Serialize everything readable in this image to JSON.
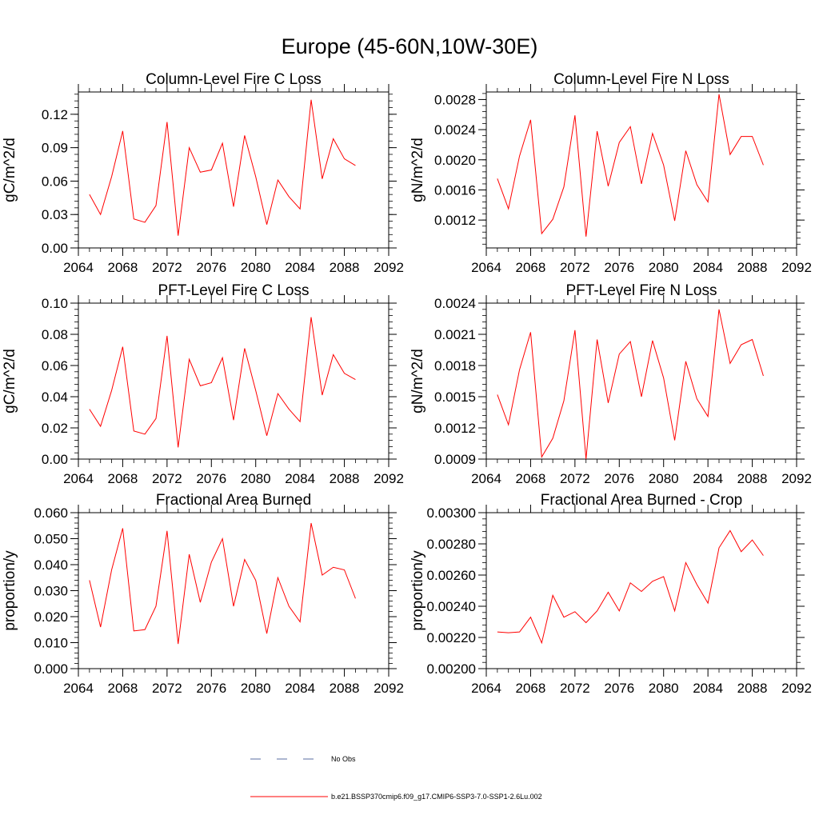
{
  "figure": {
    "title": "Europe (45-60N,10W-30E)",
    "legend": [
      {
        "label": "No Obs",
        "style": "dashed",
        "color": "#5a6ea0"
      },
      {
        "label": "b.e21.BSSP370cmip6.f09_g17.CMIP6-SSP3-7.0-SSP1-2.6Lu.002",
        "style": "solid",
        "color": "#ff0000"
      }
    ]
  },
  "chart_data": [
    {
      "type": "line",
      "title": "Column-Level Fire C Loss",
      "ylabel": "gC/m^2/d",
      "xlim": [
        2064,
        2092
      ],
      "ylim": [
        0,
        0.14
      ],
      "x_ticks": [
        2064,
        2068,
        2072,
        2076,
        2080,
        2084,
        2088,
        2092
      ],
      "y_ticks": [
        0.0,
        0.03,
        0.06,
        0.09,
        0.12
      ],
      "y_tick_labels": [
        "0.00",
        "0.03",
        "0.06",
        "0.09",
        "0.12"
      ],
      "x": [
        2065,
        2066,
        2067,
        2068,
        2069,
        2070,
        2071,
        2072,
        2073,
        2074,
        2075,
        2076,
        2077,
        2078,
        2079,
        2080,
        2081,
        2082,
        2083,
        2084,
        2085,
        2086,
        2087,
        2088,
        2089
      ],
      "series": [
        {
          "name": "b.e21.BSSP370cmip6.f09_g17.CMIP6-SSP3-7.0-SSP1-2.6Lu.002",
          "color": "#ff0000",
          "values": [
            0.048,
            0.03,
            0.064,
            0.105,
            0.026,
            0.023,
            0.038,
            0.113,
            0.011,
            0.09,
            0.068,
            0.07,
            0.094,
            0.037,
            0.101,
            0.064,
            0.021,
            0.061,
            0.046,
            0.035,
            0.133,
            0.062,
            0.098,
            0.08,
            0.074
          ]
        }
      ]
    },
    {
      "type": "line",
      "title": "Column-Level Fire N Loss",
      "ylabel": "gN/m^2/d",
      "xlim": [
        2064,
        2092
      ],
      "ylim": [
        0.00083,
        0.0029
      ],
      "x_ticks": [
        2064,
        2068,
        2072,
        2076,
        2080,
        2084,
        2088,
        2092
      ],
      "y_ticks": [
        0.0012,
        0.0016,
        0.002,
        0.0024,
        0.0028
      ],
      "y_tick_labels": [
        "0.0012",
        "0.0016",
        "0.0020",
        "0.0024",
        "0.0028"
      ],
      "x": [
        2065,
        2066,
        2067,
        2068,
        2069,
        2070,
        2071,
        2072,
        2073,
        2074,
        2075,
        2076,
        2077,
        2078,
        2079,
        2080,
        2081,
        2082,
        2083,
        2084,
        2085,
        2086,
        2087,
        2088,
        2089
      ],
      "series": [
        {
          "name": "b.e21.BSSP370cmip6.f09_g17.CMIP6-SSP3-7.0-SSP1-2.6Lu.002",
          "color": "#ff0000",
          "values": [
            0.00175,
            0.00135,
            0.00205,
            0.00253,
            0.00102,
            0.00121,
            0.00164,
            0.00259,
            0.00098,
            0.00238,
            0.00165,
            0.00223,
            0.00244,
            0.00168,
            0.00235,
            0.00193,
            0.00119,
            0.00212,
            0.00167,
            0.00144,
            0.00287,
            0.00207,
            0.00231,
            0.00231,
            0.00193
          ]
        }
      ]
    },
    {
      "type": "line",
      "title": "PFT-Level Fire C Loss",
      "ylabel": "gC/m^2/d",
      "xlim": [
        2064,
        2092
      ],
      "ylim": [
        0,
        0.1
      ],
      "x_ticks": [
        2064,
        2068,
        2072,
        2076,
        2080,
        2084,
        2088,
        2092
      ],
      "y_ticks": [
        0.0,
        0.02,
        0.04,
        0.06,
        0.08,
        0.1
      ],
      "y_tick_labels": [
        "0.00",
        "0.02",
        "0.04",
        "0.06",
        "0.08",
        "0.10"
      ],
      "x": [
        2065,
        2066,
        2067,
        2068,
        2069,
        2070,
        2071,
        2072,
        2073,
        2074,
        2075,
        2076,
        2077,
        2078,
        2079,
        2080,
        2081,
        2082,
        2083,
        2084,
        2085,
        2086,
        2087,
        2088,
        2089
      ],
      "series": [
        {
          "name": "b.e21.BSSP370cmip6.f09_g17.CMIP6-SSP3-7.0-SSP1-2.6Lu.002",
          "color": "#ff0000",
          "values": [
            0.032,
            0.021,
            0.044,
            0.072,
            0.018,
            0.016,
            0.026,
            0.079,
            0.0075,
            0.064,
            0.047,
            0.049,
            0.065,
            0.025,
            0.071,
            0.044,
            0.015,
            0.042,
            0.032,
            0.024,
            0.091,
            0.041,
            0.067,
            0.055,
            0.051
          ]
        }
      ]
    },
    {
      "type": "line",
      "title": "PFT-Level Fire N Loss",
      "ylabel": "gN/m^2/d",
      "xlim": [
        2064,
        2092
      ],
      "ylim": [
        0.0009,
        0.0024
      ],
      "x_ticks": [
        2064,
        2068,
        2072,
        2076,
        2080,
        2084,
        2088,
        2092
      ],
      "y_ticks": [
        0.0009,
        0.0012,
        0.0015,
        0.0018,
        0.0021,
        0.0024
      ],
      "y_tick_labels": [
        "0.0009",
        "0.0012",
        "0.0015",
        "0.0018",
        "0.0021",
        "0.0024"
      ],
      "x": [
        2065,
        2066,
        2067,
        2068,
        2069,
        2070,
        2071,
        2072,
        2073,
        2074,
        2075,
        2076,
        2077,
        2078,
        2079,
        2080,
        2081,
        2082,
        2083,
        2084,
        2085,
        2086,
        2087,
        2088,
        2089
      ],
      "series": [
        {
          "name": "b.e21.BSSP370cmip6.f09_g17.CMIP6-SSP3-7.0-SSP1-2.6Lu.002",
          "color": "#ff0000",
          "values": [
            0.00152,
            0.00123,
            0.00176,
            0.00212,
            0.00092,
            0.0011,
            0.00146,
            0.00214,
            0.0009,
            0.00205,
            0.00144,
            0.00191,
            0.00203,
            0.0015,
            0.00204,
            0.00168,
            0.00108,
            0.00184,
            0.00148,
            0.00131,
            0.00234,
            0.00182,
            0.002,
            0.00205,
            0.0017
          ]
        }
      ]
    },
    {
      "type": "line",
      "title": "Fractional Area Burned",
      "ylabel": "proportion/y",
      "xlim": [
        2064,
        2092
      ],
      "ylim": [
        0,
        0.06
      ],
      "x_ticks": [
        2064,
        2068,
        2072,
        2076,
        2080,
        2084,
        2088,
        2092
      ],
      "y_ticks": [
        0.0,
        0.01,
        0.02,
        0.03,
        0.04,
        0.05,
        0.06
      ],
      "y_tick_labels": [
        "0.000",
        "0.010",
        "0.020",
        "0.030",
        "0.040",
        "0.050",
        "0.060"
      ],
      "x": [
        2065,
        2066,
        2067,
        2068,
        2069,
        2070,
        2071,
        2072,
        2073,
        2074,
        2075,
        2076,
        2077,
        2078,
        2079,
        2080,
        2081,
        2082,
        2083,
        2084,
        2085,
        2086,
        2087,
        2088,
        2089
      ],
      "series": [
        {
          "name": "b.e21.BSSP370cmip6.f09_g17.CMIP6-SSP3-7.0-SSP1-2.6Lu.002",
          "color": "#ff0000",
          "values": [
            0.034,
            0.016,
            0.038,
            0.054,
            0.0145,
            0.015,
            0.024,
            0.053,
            0.0095,
            0.044,
            0.0255,
            0.041,
            0.05,
            0.024,
            0.042,
            0.034,
            0.0135,
            0.035,
            0.024,
            0.018,
            0.056,
            0.036,
            0.039,
            0.038,
            0.027
          ]
        }
      ]
    },
    {
      "type": "line",
      "title": "Fractional Area Burned - Crop",
      "ylabel": "proportion/y",
      "xlim": [
        2064,
        2092
      ],
      "ylim": [
        0.002,
        0.003
      ],
      "x_ticks": [
        2064,
        2068,
        2072,
        2076,
        2080,
        2084,
        2088,
        2092
      ],
      "y_ticks": [
        0.002,
        0.0022,
        0.0024,
        0.0026,
        0.0028,
        0.003
      ],
      "y_tick_labels": [
        "0.00200",
        "0.00220",
        "0.00240",
        "0.00260",
        "0.00280",
        "0.00300"
      ],
      "x": [
        2065,
        2066,
        2067,
        2068,
        2069,
        2070,
        2071,
        2072,
        2073,
        2074,
        2075,
        2076,
        2077,
        2078,
        2079,
        2080,
        2081,
        2082,
        2083,
        2084,
        2085,
        2086,
        2087,
        2088,
        2089
      ],
      "series": [
        {
          "name": "b.e21.BSSP370cmip6.f09_g17.CMIP6-SSP3-7.0-SSP1-2.6Lu.002",
          "color": "#ff0000",
          "values": [
            0.002235,
            0.00223,
            0.002235,
            0.00233,
            0.002165,
            0.00247,
            0.00233,
            0.002365,
            0.002295,
            0.00237,
            0.00249,
            0.00237,
            0.00255,
            0.002495,
            0.00256,
            0.00259,
            0.00237,
            0.00268,
            0.00254,
            0.00242,
            0.002775,
            0.002885,
            0.00275,
            0.002825,
            0.002725
          ]
        }
      ]
    }
  ]
}
